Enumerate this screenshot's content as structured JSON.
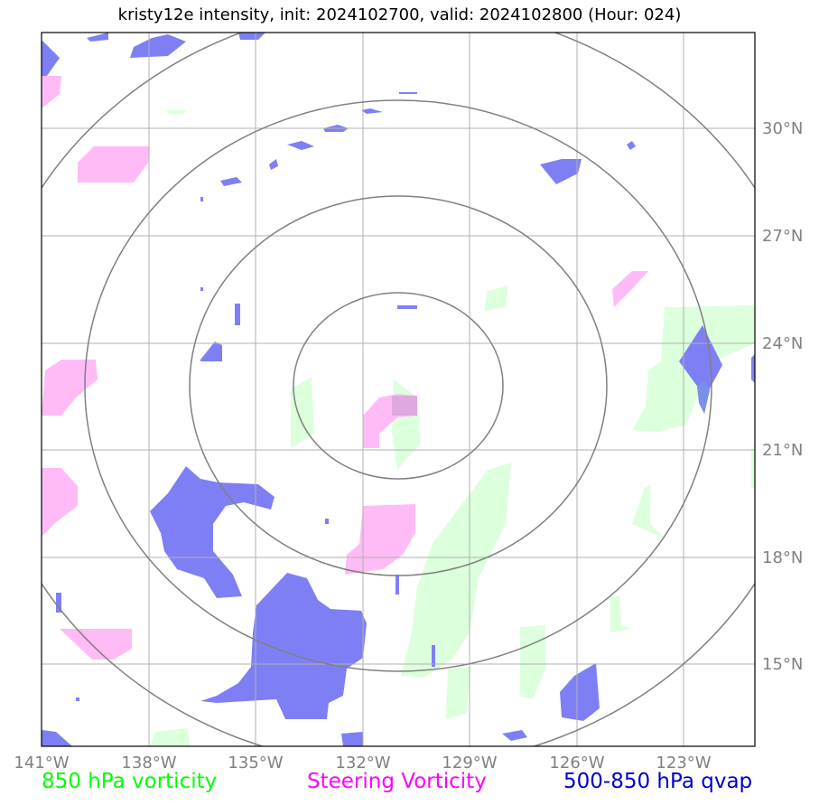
{
  "title": "kristy12e intensity, init: 2024102700, valid: 2024102800 (Hour: 024)",
  "map": {
    "lon_ticks": [
      "141°W",
      "138°W",
      "135°W",
      "132°W",
      "129°W",
      "126°W",
      "123°W"
    ],
    "lat_ticks": [
      "30°N",
      "27°N",
      "24°N",
      "21°N",
      "18°N",
      "15°N"
    ],
    "lon_range": [
      -141,
      -121
    ],
    "lat_range": [
      12.7,
      32.7
    ],
    "storm_center": {
      "lon": -131,
      "lat": 22.8
    },
    "range_rings_deg": [
      3,
      6,
      9,
      12
    ],
    "grid": true
  },
  "legend": [
    {
      "label": "850 hPa vorticity",
      "color": "#00ff00"
    },
    {
      "label": "Steering Vorticity",
      "color": "#ff00ff"
    },
    {
      "label": "500-850 hPa qvap",
      "color": "#0000cc"
    }
  ],
  "colors": {
    "vorticity_fill": "#dcffdc",
    "steering_fill": "#ffbbf6",
    "qvap_fill": "#7f7ff5",
    "grid": "#b0b0b0",
    "rings": "#808080"
  }
}
